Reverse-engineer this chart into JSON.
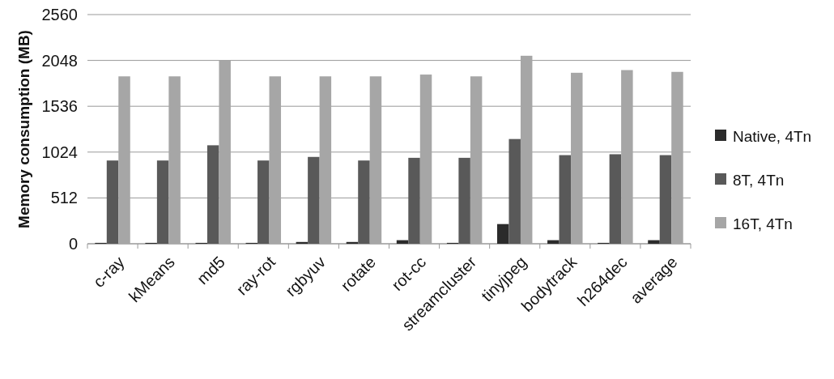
{
  "chart_data": {
    "type": "bar",
    "ylabel": "Memory consumption (MB)",
    "categories": [
      "c-ray",
      "kMeans",
      "md5",
      "ray-rot",
      "rgbyuv",
      "rotate",
      "rot-cc",
      "streamcluster",
      "tinyjpeg",
      "bodytrack",
      "h264dec",
      "average"
    ],
    "series": [
      {
        "name": "Native, 4Tn",
        "color": "#2b2b2b",
        "values": [
          10,
          10,
          10,
          10,
          20,
          20,
          40,
          10,
          220,
          40,
          10,
          40
        ]
      },
      {
        "name": "8T, 4Tn",
        "color": "#595959",
        "values": [
          930,
          930,
          1100,
          930,
          970,
          930,
          960,
          960,
          1170,
          990,
          1000,
          990
        ]
      },
      {
        "name": "16T, 4Tn",
        "color": "#a6a6a6",
        "values": [
          1870,
          1870,
          2050,
          1870,
          1870,
          1870,
          1890,
          1870,
          2100,
          1910,
          1940,
          1920
        ]
      }
    ],
    "ylim": [
      0,
      2560
    ],
    "yticks": [
      0,
      512,
      1024,
      1536,
      2048,
      2560
    ],
    "grid": "y",
    "legend": "right"
  }
}
